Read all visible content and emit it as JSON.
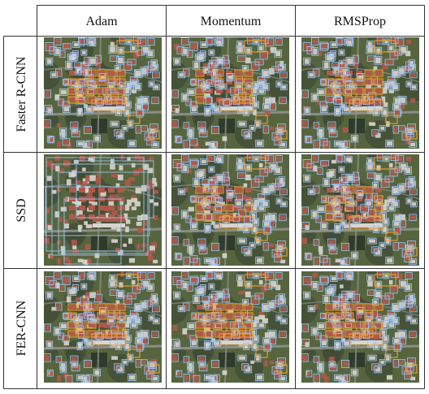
{
  "columns": [
    "Adam",
    "Momentum",
    "RMSProp"
  ],
  "rows": [
    "Faster R-CNN",
    "SSD",
    "FER-CNN"
  ],
  "colors": {
    "grid_line": "#333333",
    "box_blue": "#9cc0ee",
    "box_orange": "#f0a030",
    "ground_dark": "#3e4a36",
    "ground_mid": "#57653f",
    "road": "#8a8f86",
    "roof_red": "#b0594a",
    "roof_white": "#d9d6cf"
  }
}
